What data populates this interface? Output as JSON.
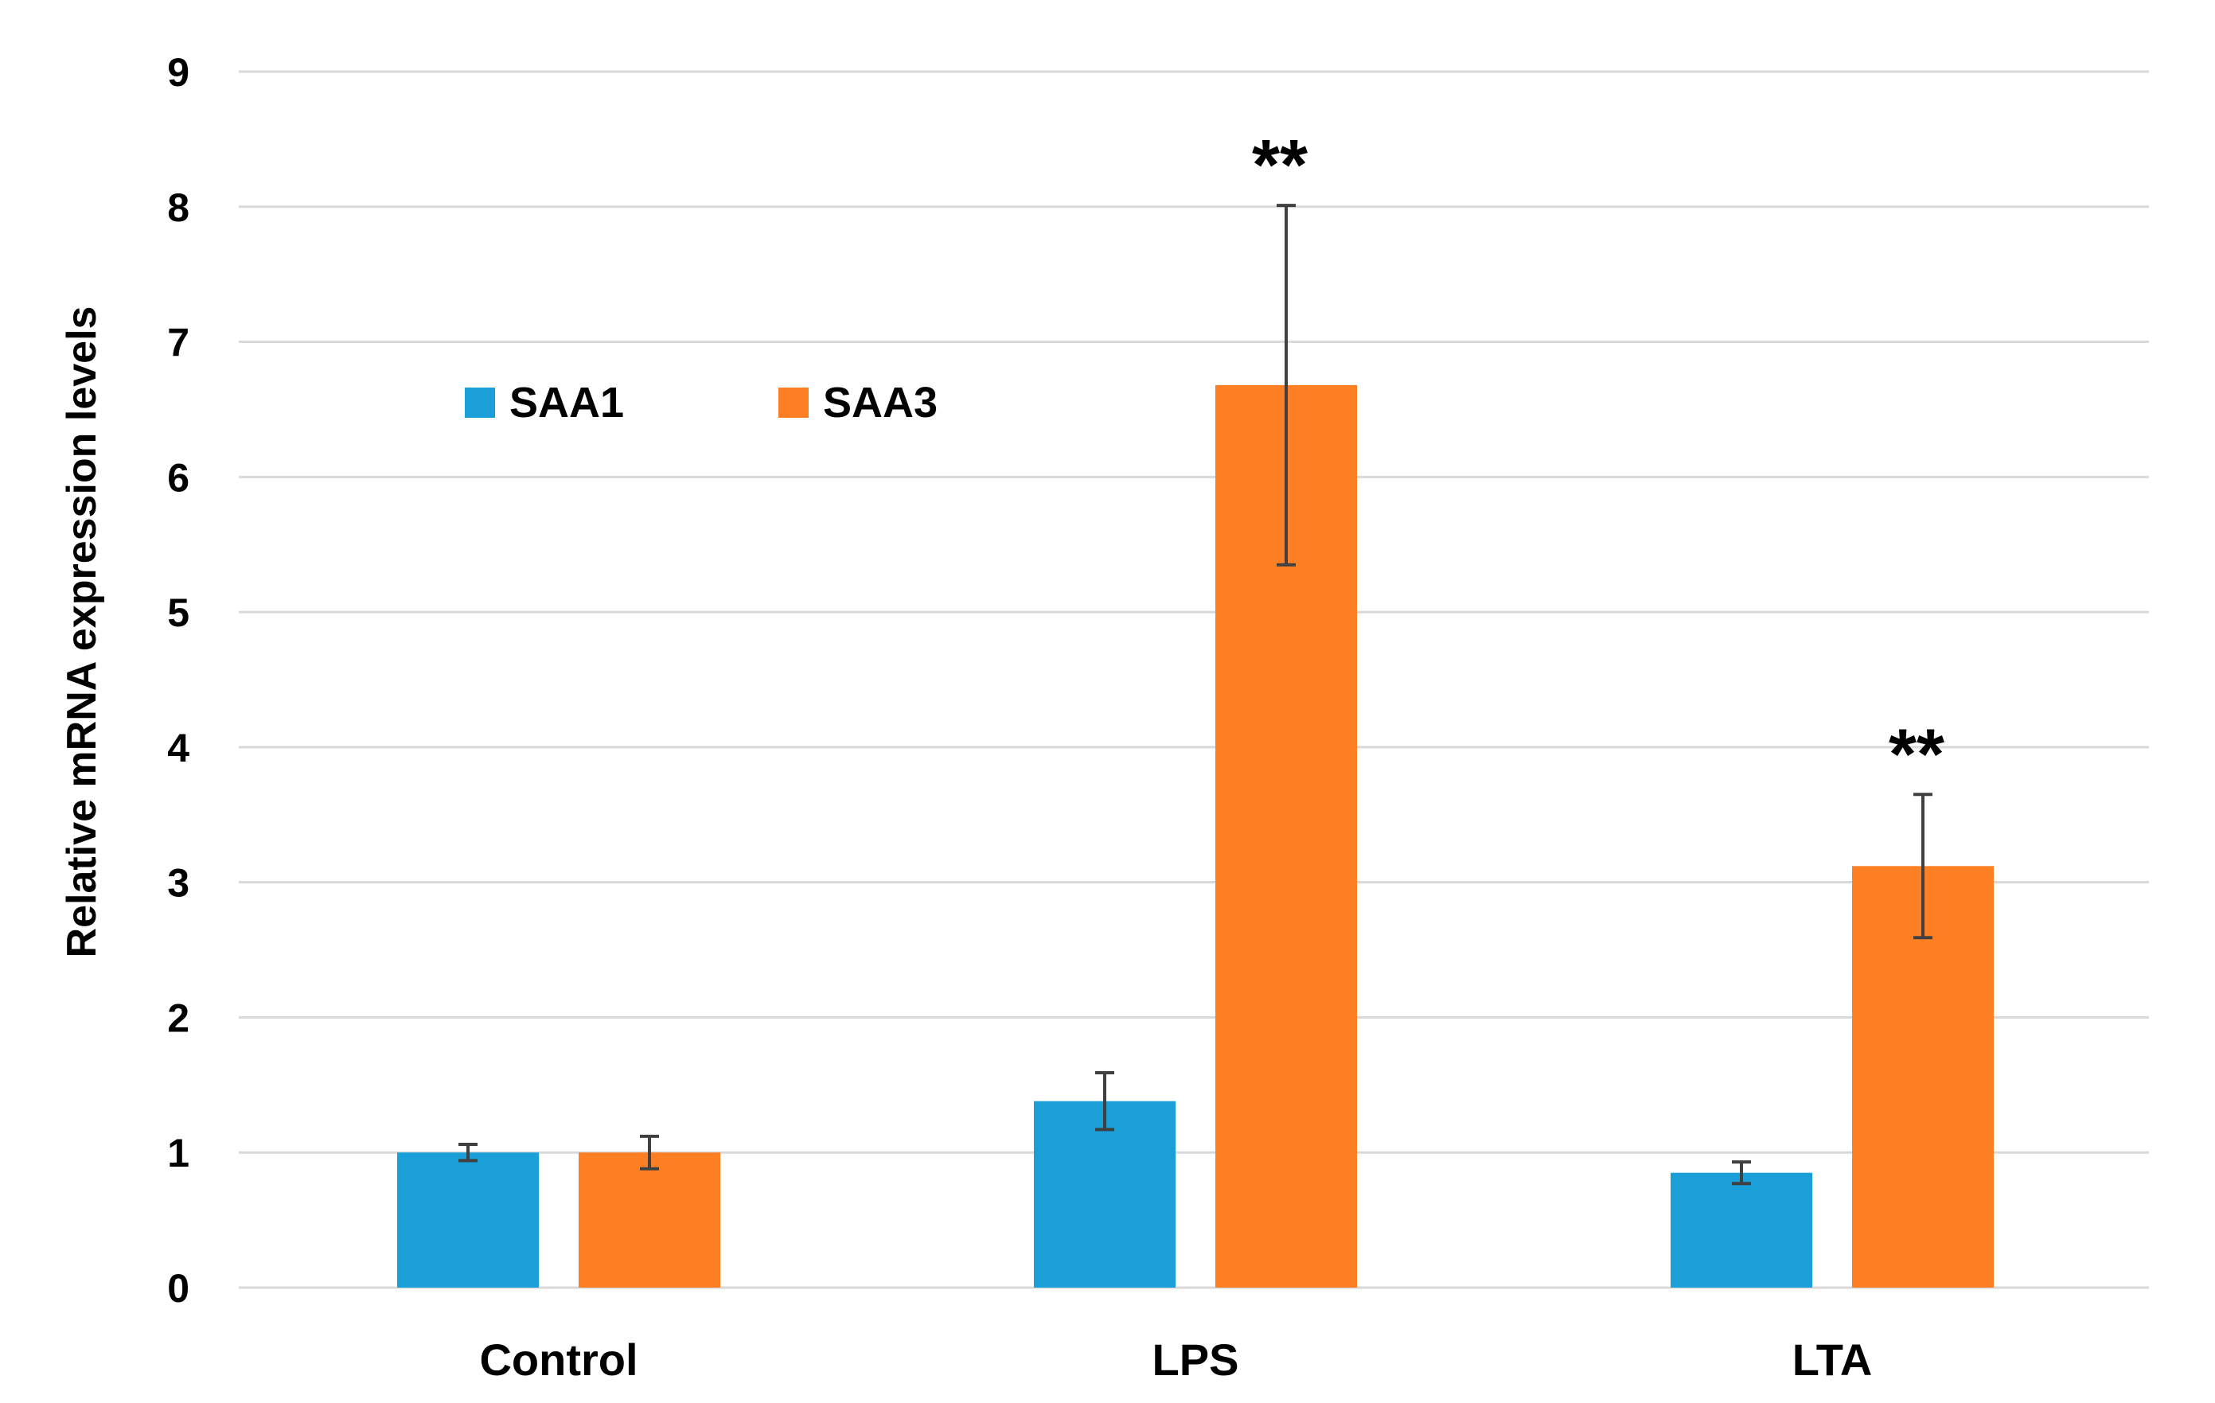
{
  "chart_data": {
    "type": "bar",
    "title": "",
    "xlabel": "",
    "ylabel": "Relative mRNA expression levels",
    "ylim": [
      0,
      9
    ],
    "yticks": [
      0,
      1,
      2,
      3,
      4,
      5,
      6,
      7,
      8,
      9
    ],
    "grid": true,
    "legend_position": "top-left",
    "categories": [
      "Control",
      "LPS",
      "LTA"
    ],
    "series": [
      {
        "name": "SAA1",
        "color": "#1a9fd9",
        "values": [
          1.0,
          1.38,
          0.85
        ],
        "errors": [
          0.06,
          0.21,
          0.08
        ]
      },
      {
        "name": "SAA3",
        "color": "#fc7f24",
        "values": [
          1.0,
          6.68,
          3.12
        ],
        "errors": [
          0.12,
          1.33,
          0.53
        ]
      }
    ],
    "annotations": [
      {
        "category": "LPS",
        "series": "SAA3",
        "text": "**"
      },
      {
        "category": "LTA",
        "series": "SAA3",
        "text": "**"
      }
    ]
  }
}
